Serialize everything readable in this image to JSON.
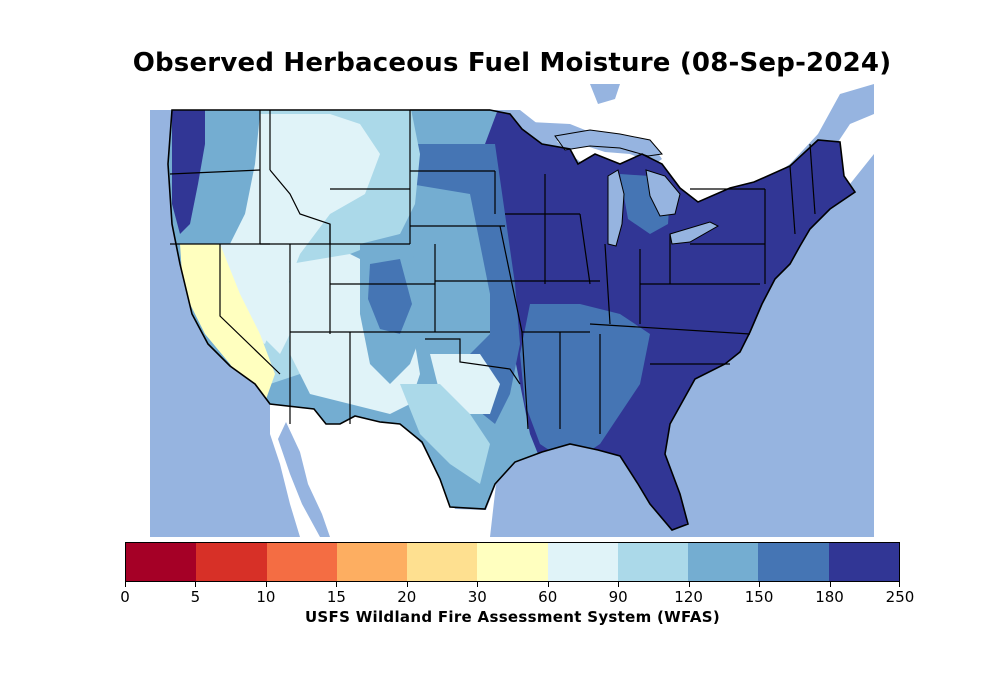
{
  "title": "Observed Herbaceous Fuel Moisture (08-Sep-2024)",
  "colorbar": {
    "label": "USFS Wildland Fire Assessment System (WFAS)",
    "ticks": [
      "0",
      "5",
      "10",
      "15",
      "20",
      "30",
      "60",
      "90",
      "120",
      "150",
      "180",
      "250"
    ],
    "bins": [
      {
        "range": "0-5",
        "color": "#a50026"
      },
      {
        "range": "5-10",
        "color": "#d73027"
      },
      {
        "range": "10-15",
        "color": "#f46d43"
      },
      {
        "range": "15-20",
        "color": "#fdae61"
      },
      {
        "range": "20-30",
        "color": "#fee090"
      },
      {
        "range": "30-60",
        "color": "#ffffbf"
      },
      {
        "range": "60-90",
        "color": "#e0f3f8"
      },
      {
        "range": "90-120",
        "color": "#abd9e9"
      },
      {
        "range": "120-150",
        "color": "#74add1"
      },
      {
        "range": "150-180",
        "color": "#4575b4"
      },
      {
        "range": "180-250",
        "color": "#313695"
      }
    ]
  },
  "map_colors": {
    "ocean_lakes": "#96b4e0",
    "land_outside": "#ffffff",
    "state_border": "#000000"
  }
}
